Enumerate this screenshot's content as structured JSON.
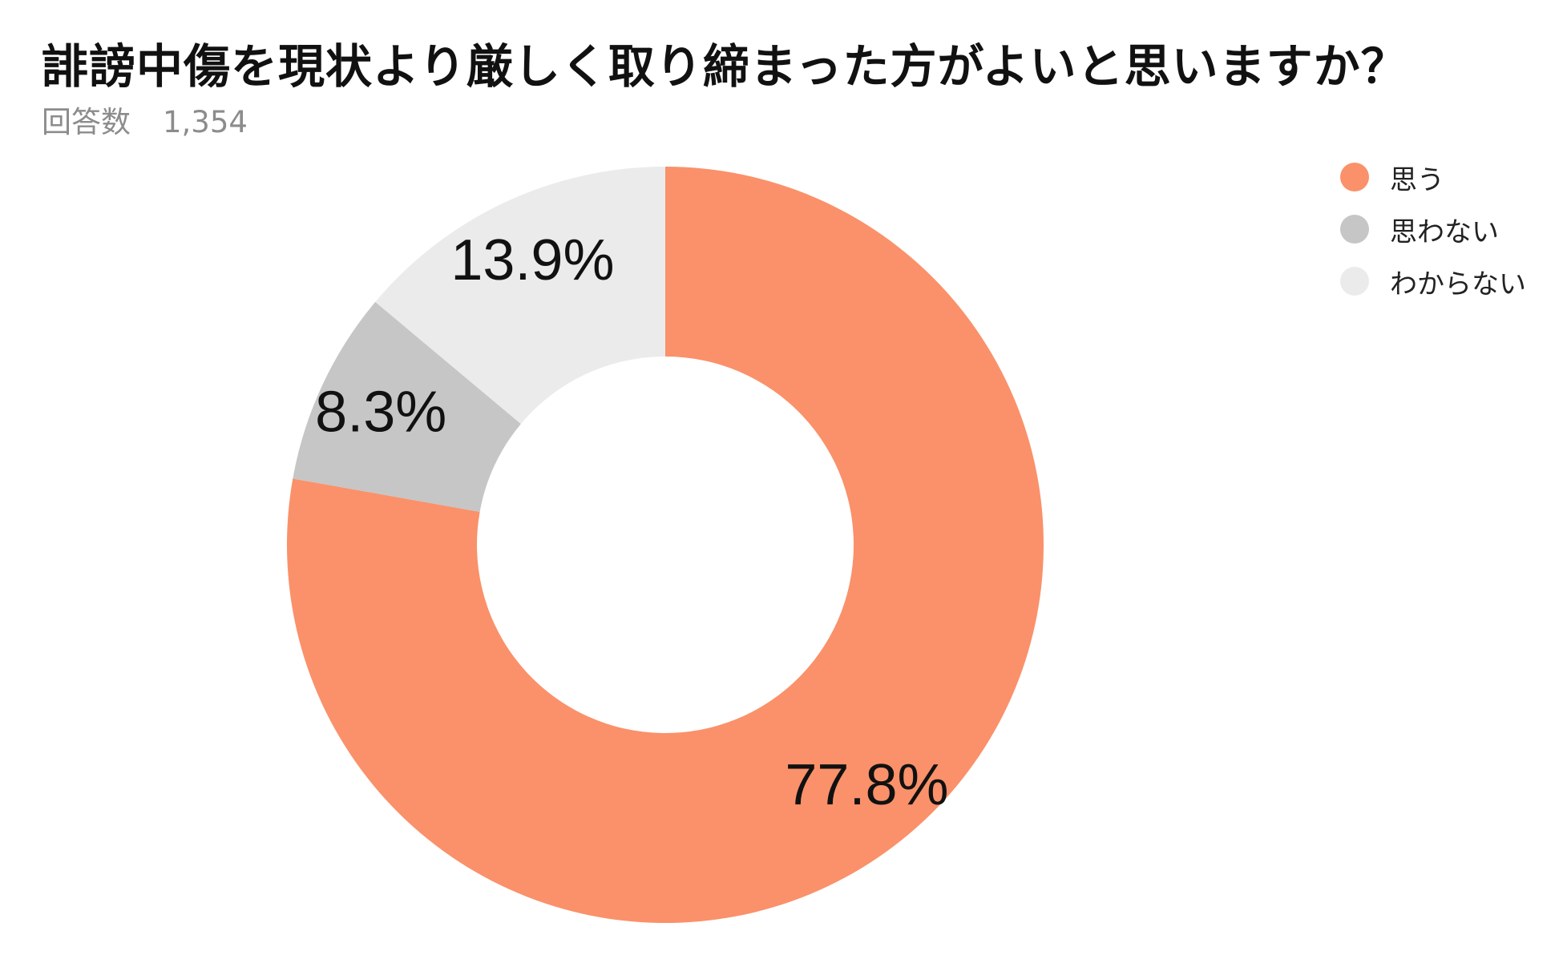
{
  "chart_data": {
    "type": "pie",
    "title": "誹謗中傷を現状より厳しく取り締まった方がよいと思いますか？",
    "subtitle_label": "回答数",
    "subtitle_count": "1,354",
    "donut": true,
    "categories": [
      "思う",
      "思わない",
      "わからない"
    ],
    "values": [
      77.8,
      8.3,
      13.9
    ],
    "value_labels": [
      "77.8%",
      "8.3%",
      "13.9%"
    ],
    "colors": [
      "#FA916A",
      "#C6C6C6",
      "#EBEBEB"
    ],
    "legend_position": "top-right"
  }
}
